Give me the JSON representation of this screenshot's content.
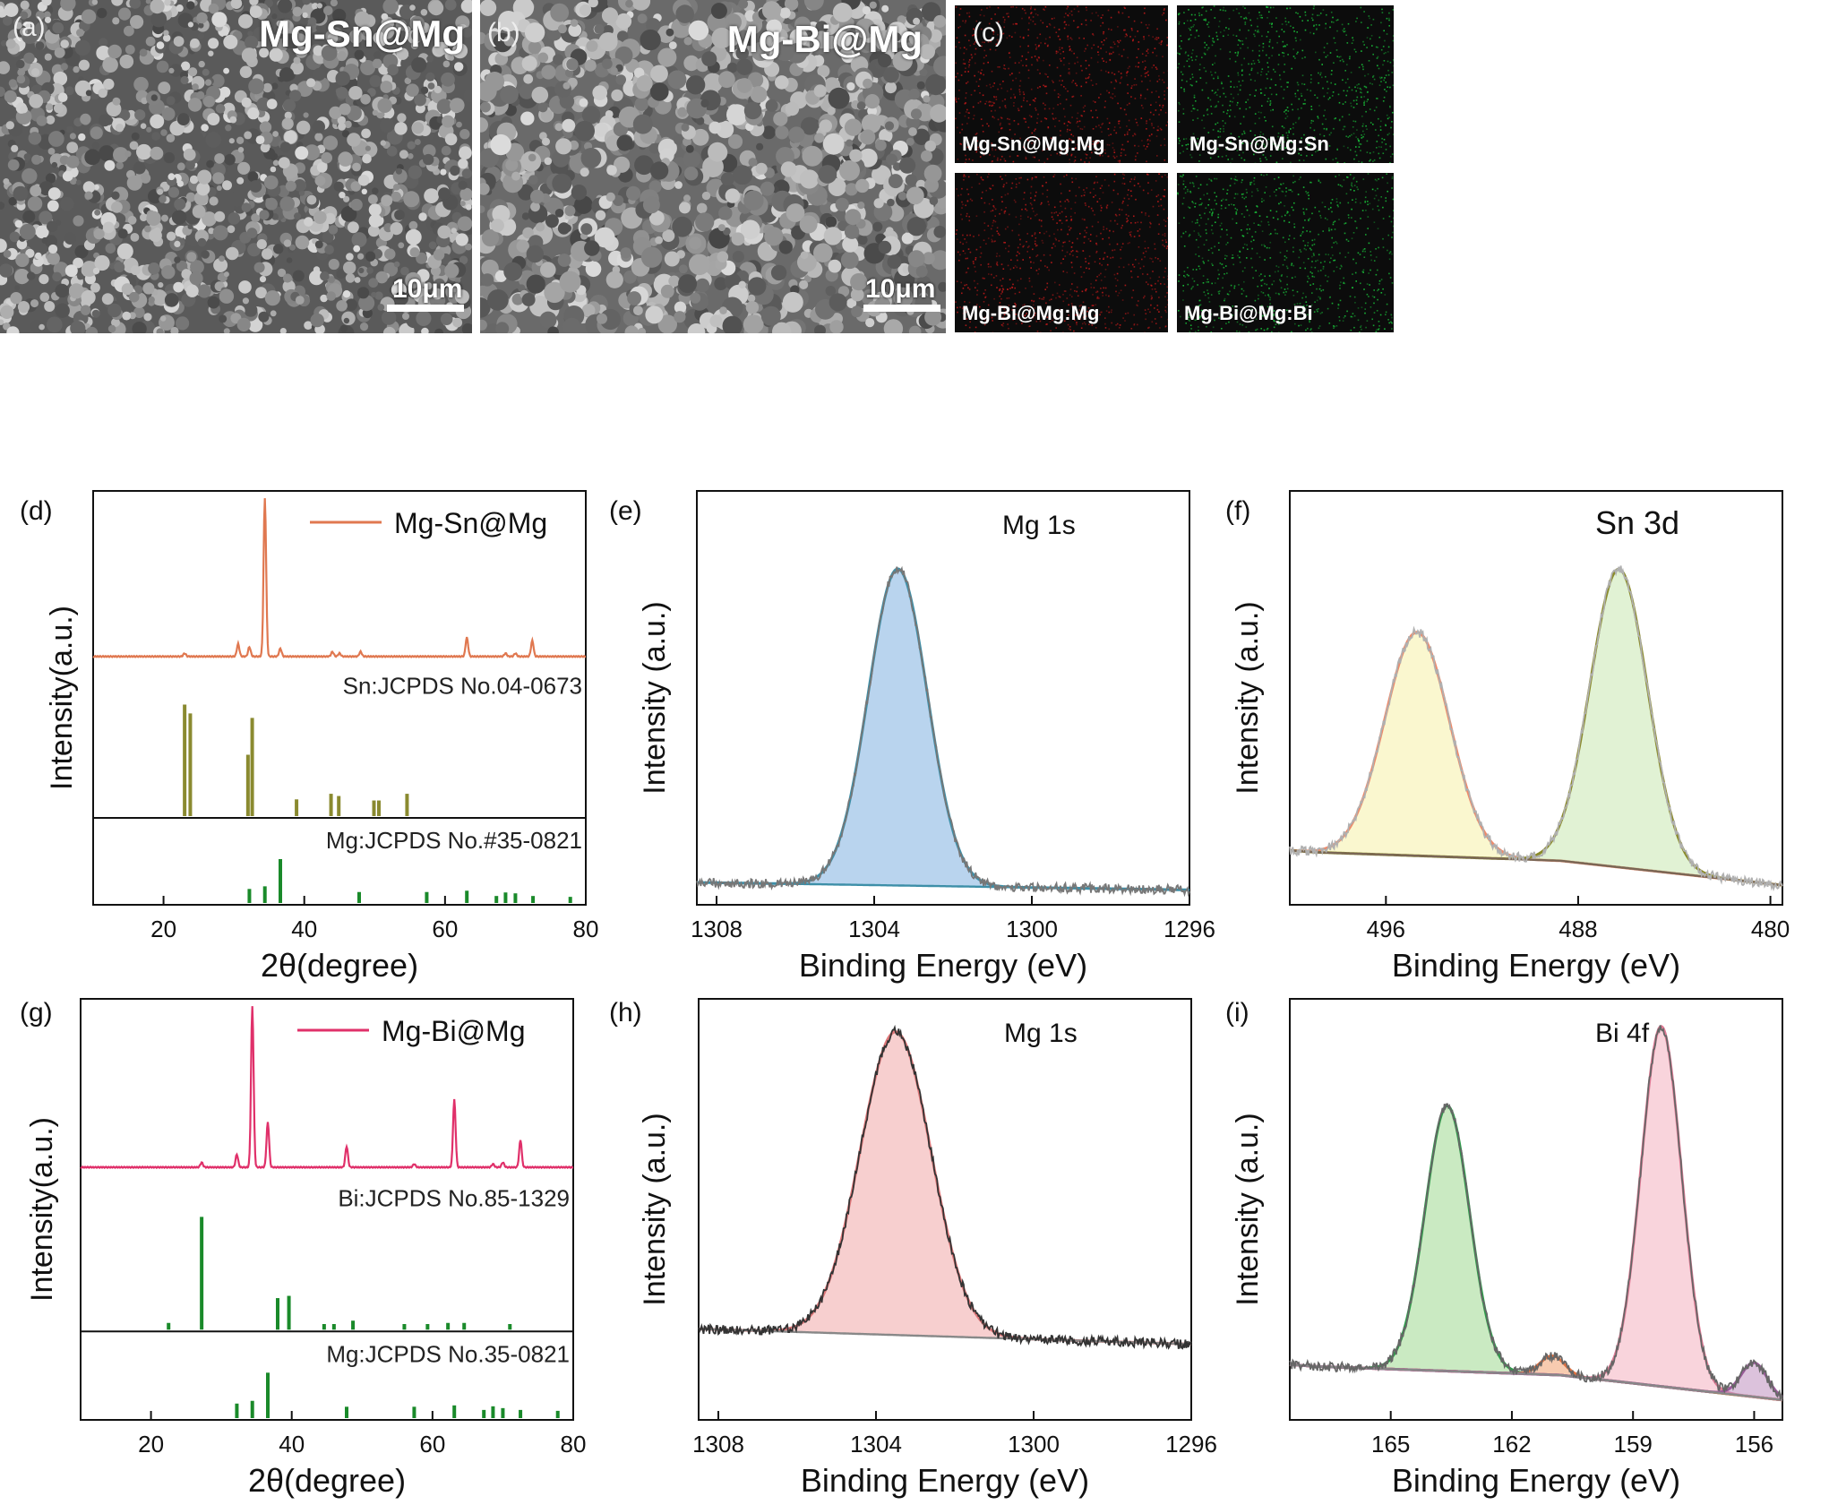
{
  "panels": {
    "a": {
      "letter": "(a)",
      "label": "Mg-Sn@Mg",
      "scale": "10μm"
    },
    "b": {
      "letter": "(b)",
      "label": "Mg-Bi@Mg",
      "scale": "10μm"
    },
    "c": {
      "letter": "(c)",
      "maps": [
        {
          "label": "Mg-Sn@Mg:Mg",
          "color": "#c21a1a"
        },
        {
          "label": "Mg-Sn@Mg:Sn",
          "color": "#19c23a"
        },
        {
          "label": "Mg-Bi@Mg:Mg",
          "color": "#c21a1a"
        },
        {
          "label": "Mg-Bi@Mg:Bi",
          "color": "#19c23a"
        }
      ]
    }
  },
  "chart_data": [
    {
      "panel": "d",
      "letter": "(d)",
      "type": "line",
      "xlabel": "2θ(degree)",
      "ylabel": "Intensity(a.u.)",
      "xlim": [
        10,
        80
      ],
      "xticks": [
        20,
        40,
        60,
        80
      ],
      "legend": "Mg-Sn@Mg",
      "line_color": "#e07850",
      "peaks": [
        {
          "x": 23,
          "h": 0.02
        },
        {
          "x": 30.6,
          "h": 0.08
        },
        {
          "x": 32.2,
          "h": 0.06
        },
        {
          "x": 34.4,
          "h": 1.0
        },
        {
          "x": 36.6,
          "h": 0.05
        },
        {
          "x": 44,
          "h": 0.03
        },
        {
          "x": 45,
          "h": 0.02
        },
        {
          "x": 48,
          "h": 0.03
        },
        {
          "x": 63.1,
          "h": 0.12
        },
        {
          "x": 68.6,
          "h": 0.02
        },
        {
          "x": 70,
          "h": 0.02
        },
        {
          "x": 72.4,
          "h": 0.1
        }
      ],
      "refs": [
        {
          "label": "Sn:JCPDS No.04-0673",
          "color": "#8a8a30",
          "lines": [
            {
              "x": 23.0,
              "h": 1.0
            },
            {
              "x": 23.8,
              "h": 0.92
            },
            {
              "x": 32.0,
              "h": 0.55
            },
            {
              "x": 32.6,
              "h": 0.88
            },
            {
              "x": 38.9,
              "h": 0.15
            },
            {
              "x": 43.8,
              "h": 0.2
            },
            {
              "x": 44.9,
              "h": 0.18
            },
            {
              "x": 49.9,
              "h": 0.14
            },
            {
              "x": 50.6,
              "h": 0.14
            },
            {
              "x": 54.6,
              "h": 0.2
            }
          ]
        },
        {
          "label": "Mg:JCPDS No.#35-0821",
          "color": "#1a8a2a",
          "lines": [
            {
              "x": 32.2,
              "h": 0.32
            },
            {
              "x": 34.4,
              "h": 0.38
            },
            {
              "x": 36.6,
              "h": 1.0
            },
            {
              "x": 47.8,
              "h": 0.25
            },
            {
              "x": 57.4,
              "h": 0.25
            },
            {
              "x": 63.1,
              "h": 0.28
            },
            {
              "x": 67.3,
              "h": 0.16
            },
            {
              "x": 68.6,
              "h": 0.24
            },
            {
              "x": 70.0,
              "h": 0.22
            },
            {
              "x": 72.5,
              "h": 0.16
            },
            {
              "x": 77.8,
              "h": 0.14
            }
          ]
        }
      ]
    },
    {
      "panel": "e",
      "letter": "(e)",
      "type": "line",
      "xlabel": "Binding Energy (eV)",
      "ylabel": "Intensity (a.u.)",
      "xlim": [
        1308.5,
        1296
      ],
      "xticks": [
        1308,
        1304,
        1300,
        1296
      ],
      "annotation": "Mg 1s",
      "fill_color": "#7fb0e0",
      "line_color": "#3d8fa8",
      "raw_color": "#777777",
      "peaks": [
        {
          "center": 1303.4,
          "height": 0.85,
          "sigma": 0.75
        }
      ],
      "baseline": [
        0.06,
        0.04
      ]
    },
    {
      "panel": "f",
      "letter": "(f)",
      "type": "line",
      "xlabel": "Binding Energy (eV)",
      "ylabel": "Intensity (a.u.)",
      "xlim": [
        500,
        479.5
      ],
      "xticks": [
        496,
        488,
        480
      ],
      "annotation": "Sn 3d",
      "raw_color": "#b0b0b0",
      "bg_color": "#7a6655",
      "peaks": [
        {
          "center": 494.7,
          "height": 0.6,
          "sigma": 1.35,
          "fill": "#f5f0a8",
          "line": "#ee8a6a"
        },
        {
          "center": 486.3,
          "height": 0.8,
          "sigma": 1.2,
          "fill": "#c8e8b0",
          "line": "#8a8a2a"
        }
      ]
    },
    {
      "panel": "g",
      "letter": "(g)",
      "type": "line",
      "xlabel": "2θ(degree)",
      "ylabel": "Intensity(a.u.)",
      "xlim": [
        10,
        80
      ],
      "xticks": [
        20,
        40,
        60,
        80
      ],
      "legend": "Mg-Bi@Mg",
      "line_color": "#e0306a",
      "peaks": [
        {
          "x": 27.2,
          "h": 0.03
        },
        {
          "x": 32.2,
          "h": 0.08
        },
        {
          "x": 34.4,
          "h": 1.0
        },
        {
          "x": 36.6,
          "h": 0.28
        },
        {
          "x": 47.8,
          "h": 0.13
        },
        {
          "x": 57.4,
          "h": 0.02
        },
        {
          "x": 63.1,
          "h": 0.42
        },
        {
          "x": 68.6,
          "h": 0.02
        },
        {
          "x": 70,
          "h": 0.03
        },
        {
          "x": 72.5,
          "h": 0.17
        }
      ],
      "refs": [
        {
          "label": "Bi:JCPDS No.85-1329",
          "color": "#1a8a2a",
          "lines": [
            {
              "x": 22.5,
              "h": 0.06
            },
            {
              "x": 27.2,
              "h": 1.0
            },
            {
              "x": 38.0,
              "h": 0.28
            },
            {
              "x": 39.6,
              "h": 0.3
            },
            {
              "x": 44.6,
              "h": 0.05
            },
            {
              "x": 46.0,
              "h": 0.05
            },
            {
              "x": 48.7,
              "h": 0.08
            },
            {
              "x": 56.0,
              "h": 0.05
            },
            {
              "x": 59.3,
              "h": 0.05
            },
            {
              "x": 62.2,
              "h": 0.06
            },
            {
              "x": 64.5,
              "h": 0.06
            },
            {
              "x": 71.0,
              "h": 0.05
            }
          ]
        },
        {
          "label": "Mg:JCPDS No.35-0821",
          "color": "#1a8a2a",
          "lines": [
            {
              "x": 32.2,
              "h": 0.32
            },
            {
              "x": 34.4,
              "h": 0.38
            },
            {
              "x": 36.6,
              "h": 1.0
            },
            {
              "x": 47.8,
              "h": 0.25
            },
            {
              "x": 57.4,
              "h": 0.25
            },
            {
              "x": 63.1,
              "h": 0.28
            },
            {
              "x": 67.3,
              "h": 0.18
            },
            {
              "x": 68.6,
              "h": 0.26
            },
            {
              "x": 70.0,
              "h": 0.22
            },
            {
              "x": 72.5,
              "h": 0.18
            },
            {
              "x": 77.8,
              "h": 0.16
            }
          ]
        }
      ]
    },
    {
      "panel": "h",
      "letter": "(h)",
      "type": "line",
      "xlabel": "Binding Energy (eV)",
      "ylabel": "Intensity (a.u.)",
      "xlim": [
        1308.5,
        1296
      ],
      "xticks": [
        1308,
        1304,
        1300,
        1296
      ],
      "annotation": "Mg 1s",
      "fill_color": "#f0a8a8",
      "line_color": "#e0787a",
      "raw_color": "#333333",
      "bg_color": "#888888",
      "peaks": [
        {
          "center": 1303.5,
          "height": 0.8,
          "sigma": 0.9
        }
      ],
      "baseline": [
        0.24,
        0.2
      ]
    },
    {
      "panel": "i",
      "letter": "(i)",
      "type": "line",
      "xlabel": "Binding Energy (eV)",
      "ylabel": "Intensity (a.u.)",
      "xlim": [
        167.5,
        155.3
      ],
      "xticks": [
        165,
        162,
        159,
        156
      ],
      "annotation": "Bi 4f",
      "raw_color": "#666666",
      "bg_color": "#888888",
      "peaks": [
        {
          "center": 163.6,
          "height": 0.7,
          "sigma": 0.55,
          "fill": "#9fd890",
          "line": "#2e9a4a"
        },
        {
          "center": 161.0,
          "height": 0.05,
          "sigma": 0.3,
          "fill": "#f0a070",
          "line": "#e07040"
        },
        {
          "center": 158.3,
          "height": 0.95,
          "sigma": 0.5,
          "fill": "#f4b0c0",
          "line": "#e07a95"
        },
        {
          "center": 156.0,
          "height": 0.09,
          "sigma": 0.32,
          "fill": "#c090c0",
          "line": "#9a5a9a"
        }
      ]
    }
  ]
}
